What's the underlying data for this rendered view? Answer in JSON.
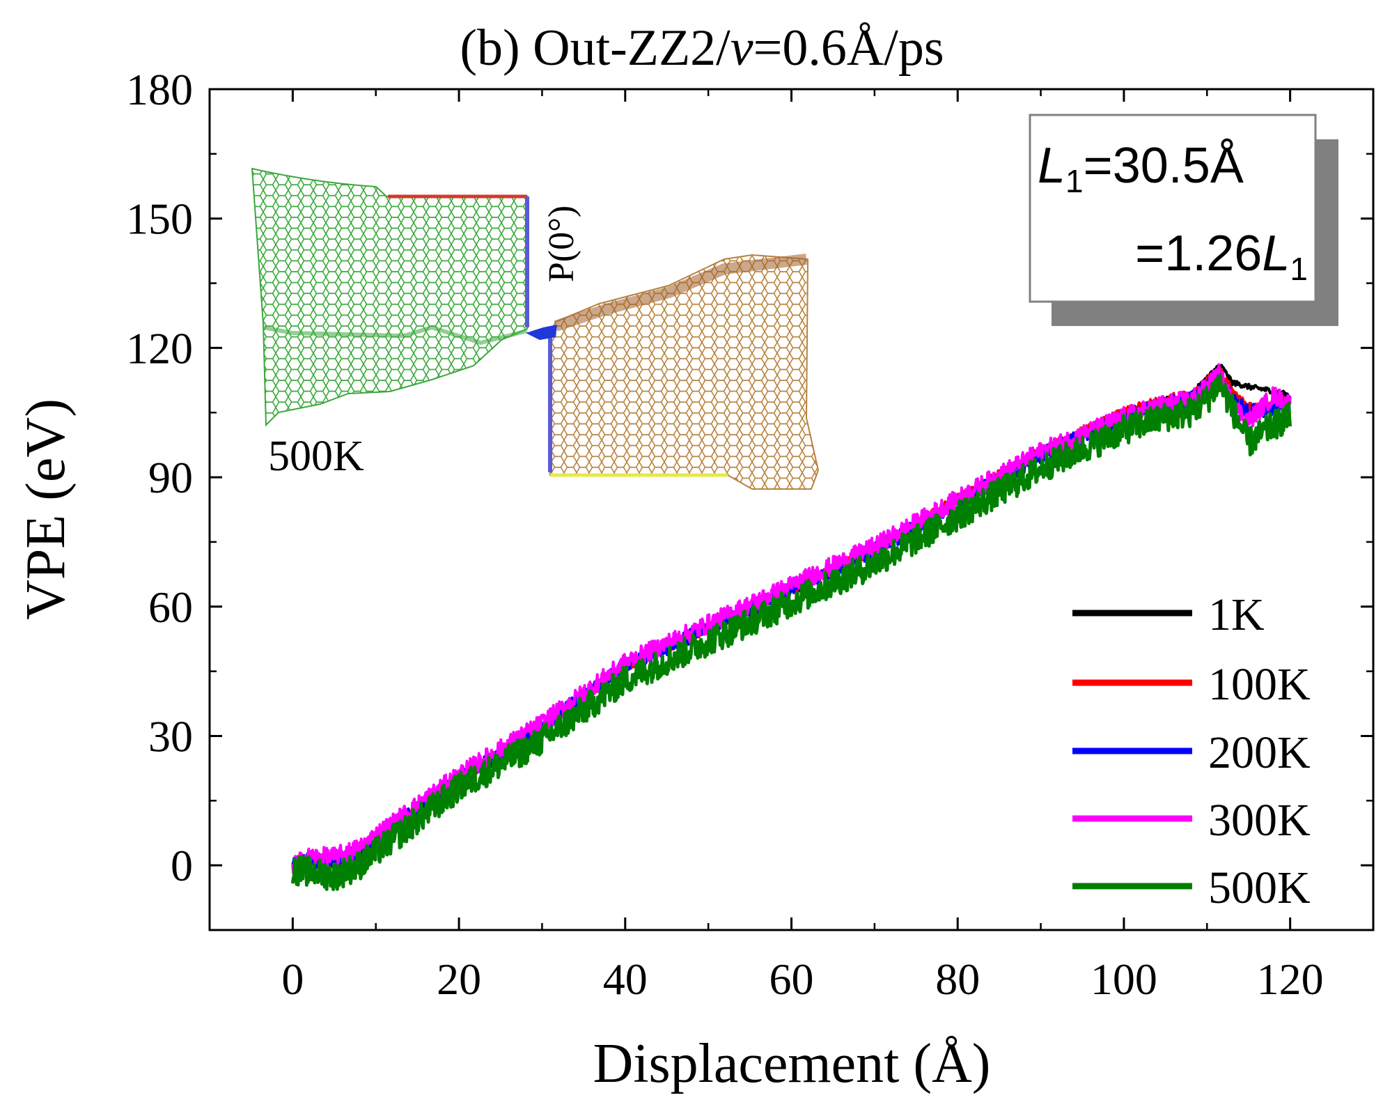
{
  "chart_data": {
    "type": "line",
    "title_prefix": "(b) Out-ZZ2/",
    "title_italic": "v",
    "title_suffix": "=0.6Å/ps",
    "xlabel": "Displacement (Å)",
    "ylabel": "VPE (eV)",
    "xlim": [
      -10,
      130
    ],
    "ylim": [
      -15,
      180
    ],
    "xticks": [
      0,
      20,
      40,
      60,
      80,
      100,
      120
    ],
    "yticks": [
      0,
      30,
      60,
      90,
      120,
      150,
      180
    ],
    "annotation": {
      "line1_italic": "L",
      "line1_sub": "1",
      "line1_rest": "=30.5Å",
      "line2_prefix": "=1.26",
      "line2_italic": "L",
      "line2_sub": "1"
    },
    "inset": {
      "temperature_label": "500K",
      "point_label": "P(0°)"
    },
    "series": [
      {
        "name": "1K",
        "color": "#000000",
        "x": [
          0,
          2,
          5,
          8,
          10,
          20,
          30,
          40,
          50,
          60,
          70,
          80,
          90,
          100,
          105,
          108,
          110,
          111.5,
          112,
          113,
          115,
          118,
          120
        ],
        "values": [
          0,
          1.5,
          1.5,
          3,
          6,
          20,
          32,
          46,
          55,
          64,
          73,
          85,
          96,
          105,
          108,
          109,
          113,
          116,
          115,
          112,
          111,
          110,
          109
        ]
      },
      {
        "name": "100K",
        "color": "#ff0000",
        "x": [
          0,
          2,
          5,
          8,
          10,
          20,
          30,
          40,
          50,
          60,
          70,
          80,
          90,
          100,
          105,
          108,
          110,
          111.5,
          112,
          113,
          115,
          118,
          120
        ],
        "values": [
          0,
          1.5,
          1.2,
          3,
          6,
          20,
          32,
          46,
          55,
          64,
          73,
          85,
          96,
          105,
          108,
          109,
          112,
          114.5,
          113,
          110,
          106,
          107,
          108
        ]
      },
      {
        "name": "200K",
        "color": "#0000ff",
        "x": [
          0,
          2,
          5,
          8,
          10,
          20,
          30,
          40,
          50,
          60,
          70,
          80,
          90,
          100,
          105,
          108,
          110,
          111.5,
          112,
          113,
          115,
          118,
          120
        ],
        "values": [
          0,
          1.2,
          1,
          3,
          6,
          20,
          32,
          46,
          55,
          64,
          73,
          84,
          95,
          104,
          107,
          108,
          111,
          114,
          112,
          108,
          105,
          106,
          107
        ]
      },
      {
        "name": "300K",
        "color": "#ff00ff",
        "x": [
          0,
          2,
          5,
          8,
          10,
          20,
          30,
          40,
          50,
          60,
          70,
          80,
          90,
          100,
          105,
          108,
          110,
          111.5,
          112,
          113,
          115,
          118,
          120
        ],
        "values": [
          0,
          2,
          2,
          4,
          7,
          21,
          33,
          47,
          56,
          65,
          74,
          85,
          96,
          104,
          107,
          108,
          111,
          114,
          112,
          107,
          103,
          109,
          107
        ]
      },
      {
        "name": "500K",
        "color": "#008000",
        "x": [
          0,
          2,
          5,
          8,
          10,
          20,
          30,
          40,
          50,
          60,
          70,
          80,
          90,
          100,
          105,
          108,
          110,
          111.5,
          112,
          113,
          115,
          118,
          120
        ],
        "values": [
          -1,
          -1.5,
          -2.5,
          0,
          3,
          18,
          29,
          43,
          52,
          61,
          70,
          81,
          92,
          101,
          104,
          105,
          108,
          112,
          110,
          106,
          98,
          102,
          104
        ]
      }
    ]
  }
}
